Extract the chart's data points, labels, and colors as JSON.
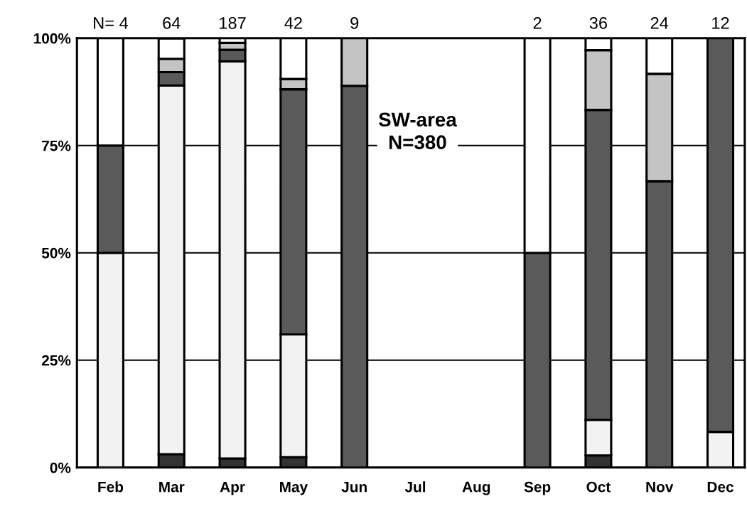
{
  "chart_data": {
    "type": "bar",
    "stacked": true,
    "categories": [
      "Feb",
      "Mar",
      "Apr",
      "May",
      "Jun",
      "Jul",
      "Aug",
      "Sep",
      "Oct",
      "Nov",
      "Dec"
    ],
    "series": [
      {
        "color": "#333333",
        "values": [
          0,
          3.1,
          2.1,
          2.4,
          0,
          null,
          null,
          0,
          2.8,
          0,
          0
        ]
      },
      {
        "color": "#f2f2f2",
        "values": [
          50,
          85.9,
          92.5,
          28.6,
          0,
          null,
          null,
          0,
          8.3,
          0,
          8.3
        ]
      },
      {
        "color": "#5a5a5a",
        "values": [
          25,
          3.1,
          2.7,
          57.1,
          88.9,
          null,
          null,
          50,
          72.2,
          66.7,
          91.7
        ]
      },
      {
        "color": "#c4c4c4",
        "values": [
          0,
          3.1,
          1.6,
          2.4,
          11.1,
          null,
          null,
          0,
          13.9,
          25,
          0
        ]
      },
      {
        "color": "#ffffff",
        "values": [
          25,
          4.7,
          1.1,
          9.5,
          0,
          null,
          null,
          50,
          2.8,
          8.3,
          0
        ]
      }
    ],
    "ylim": [
      0,
      100
    ],
    "yticks": [
      {
        "value": 0,
        "label": "0%"
      },
      {
        "value": 25,
        "label": "25%"
      },
      {
        "value": 50,
        "label": "50%"
      },
      {
        "value": 75,
        "label": "75%"
      },
      {
        "value": 100,
        "label": "100%"
      }
    ],
    "grid": "y",
    "annotations": [
      "N= 4",
      "64",
      "187",
      "42",
      "9",
      "2",
      "36",
      "24",
      "12",
      "SW-area\nN=380"
    ]
  }
}
